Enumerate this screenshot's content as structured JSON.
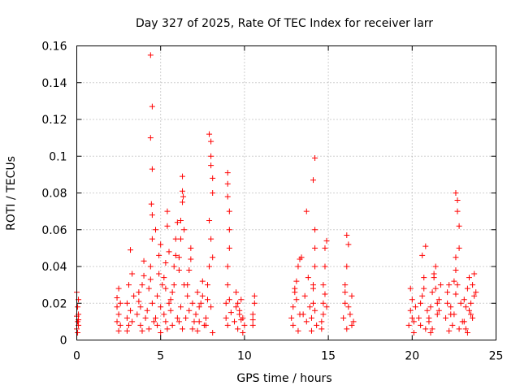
{
  "chart_data": {
    "type": "scatter",
    "title": "Day 327 of 2025, Rate Of TEC Index for receiver larr",
    "xlabel": "GPS time / hours",
    "ylabel": "ROTI / TECUs",
    "xlim": [
      0,
      25
    ],
    "ylim": [
      0,
      0.16
    ],
    "x_ticks": [
      0,
      5,
      10,
      15,
      20,
      25
    ],
    "x_tick_labels": [
      "0",
      "5",
      "10",
      "15",
      "20",
      "25"
    ],
    "y_ticks": [
      0,
      0.02,
      0.04,
      0.06,
      0.08,
      0.1,
      0.12,
      0.14,
      0.16
    ],
    "y_tick_labels": [
      "0",
      "0.02",
      "0.04",
      "0.06",
      "0.08",
      "0.1",
      "0.12",
      "0.14",
      "0.16"
    ],
    "grid": true,
    "legend": "none",
    "marker": "plus",
    "color": "#ff0000",
    "series": [
      {
        "x": [
          0.0,
          0.0,
          0.05,
          0.05,
          0.1,
          0.1,
          0.1,
          0.0,
          0.05,
          0.1,
          2.4,
          2.4,
          2.5,
          2.5,
          2.6,
          2.6,
          2.5,
          2.4,
          3.0,
          3.0,
          3.1,
          3.2,
          3.2,
          3.3,
          3.4,
          3.3,
          3.1,
          3.0,
          3.6,
          3.7,
          3.8,
          3.9,
          4.0,
          4.1,
          3.8,
          3.7,
          4.0,
          3.9,
          4.2,
          4.3,
          4.4,
          4.4,
          4.5,
          4.4,
          4.5,
          4.45,
          4.5,
          4.5,
          4.5,
          4.6,
          4.4,
          4.3,
          4.7,
          4.8,
          4.9,
          4.9,
          5.0,
          5.0,
          5.1,
          4.8,
          4.7,
          5.0,
          5.2,
          5.3,
          5.3,
          5.4,
          5.4,
          5.5,
          5.3,
          5.2,
          5.5,
          5.4,
          5.6,
          5.7,
          5.8,
          5.9,
          6.0,
          6.0,
          5.8,
          5.7,
          5.9,
          5.6,
          6.1,
          6.1,
          6.2,
          6.2,
          6.3,
          6.3,
          6.3,
          6.35,
          6.4,
          6.4,
          6.2,
          6.1,
          6.3,
          6.5,
          6.6,
          6.7,
          6.8,
          6.9,
          7.0,
          6.6,
          6.8,
          6.7,
          6.9,
          7.1,
          7.2,
          7.3,
          7.4,
          7.5,
          7.6,
          7.3,
          7.2,
          7.5,
          7.7,
          7.8,
          7.9,
          7.9,
          8.0,
          8.0,
          8.0,
          8.1,
          8.1,
          7.9,
          8.0,
          8.1,
          7.8,
          7.7,
          8.0,
          8.1,
          8.9,
          9.0,
          9.0,
          9.0,
          9.1,
          9.1,
          9.1,
          9.0,
          9.0,
          8.9,
          9.1,
          9.2,
          9.0,
          9.4,
          9.5,
          9.6,
          9.7,
          9.8,
          9.9,
          10.0,
          9.5,
          9.7,
          9.9,
          9.6,
          9.8,
          10.5,
          10.5,
          10.6,
          10.6,
          10.5,
          12.8,
          12.9,
          13.0,
          13.1,
          13.2,
          13.3,
          13.4,
          12.9,
          13.1,
          13.3,
          13.0,
          13.2,
          13.5,
          13.6,
          13.7,
          13.8,
          13.7,
          13.9,
          14.0,
          14.1,
          14.1,
          14.2,
          14.2,
          14.2,
          14.1,
          14.2,
          14.0,
          14.1,
          14.2,
          14.3,
          14.6,
          14.7,
          14.7,
          14.8,
          14.8,
          14.9,
          14.7,
          14.6,
          14.8,
          14.9,
          15.9,
          16.0,
          16.0,
          16.1,
          16.1,
          16.2,
          16.3,
          16.4,
          16.5,
          16.1,
          16.0,
          16.2,
          16.4,
          19.8,
          19.9,
          20.0,
          20.1,
          20.2,
          19.9,
          20.1,
          20.0,
          20.4,
          20.5,
          20.6,
          20.7,
          20.8,
          20.9,
          20.7,
          20.5,
          20.8,
          20.6,
          21.0,
          21.1,
          21.2,
          21.3,
          21.4,
          21.5,
          21.6,
          21.7,
          21.2,
          21.1,
          21.3,
          21.5,
          21.0,
          21.4,
          21.6,
          22.0,
          22.1,
          22.2,
          22.3,
          22.4,
          22.1,
          22.3,
          22.2,
          22.5,
          22.6,
          22.6,
          22.6,
          22.7,
          22.7,
          22.8,
          22.8,
          22.6,
          22.7,
          22.9,
          23.0,
          22.8,
          22.5,
          23.1,
          23.2,
          23.3,
          23.4,
          23.5,
          23.6,
          23.7,
          23.2,
          23.4,
          23.6,
          23.1,
          23.3,
          23.5,
          23.7,
          23.8
        ],
        "y": [
          0.006,
          0.013,
          0.01,
          0.018,
          0.008,
          0.014,
          0.022,
          0.026,
          0.004,
          0.011,
          0.01,
          0.018,
          0.028,
          0.014,
          0.008,
          0.02,
          0.005,
          0.023,
          0.012,
          0.02,
          0.03,
          0.049,
          0.016,
          0.01,
          0.024,
          0.036,
          0.008,
          0.005,
          0.014,
          0.026,
          0.018,
          0.03,
          0.035,
          0.012,
          0.008,
          0.021,
          0.043,
          0.005,
          0.016,
          0.028,
          0.04,
          0.155,
          0.127,
          0.11,
          0.093,
          0.074,
          0.068,
          0.055,
          0.02,
          0.01,
          0.033,
          0.006,
          0.012,
          0.024,
          0.036,
          0.046,
          0.052,
          0.018,
          0.03,
          0.008,
          0.06,
          0.004,
          0.014,
          0.028,
          0.042,
          0.062,
          0.07,
          0.02,
          0.01,
          0.034,
          0.048,
          0.006,
          0.016,
          0.026,
          0.04,
          0.055,
          0.064,
          0.012,
          0.03,
          0.008,
          0.046,
          0.022,
          0.01,
          0.045,
          0.055,
          0.065,
          0.075,
          0.089,
          0.081,
          0.078,
          0.06,
          0.03,
          0.018,
          0.038,
          0.006,
          0.012,
          0.024,
          0.038,
          0.05,
          0.02,
          0.01,
          0.03,
          0.044,
          0.016,
          0.006,
          0.014,
          0.026,
          0.01,
          0.02,
          0.032,
          0.008,
          0.018,
          0.005,
          0.024,
          0.012,
          0.022,
          0.04,
          0.112,
          0.108,
          0.1,
          0.095,
          0.088,
          0.08,
          0.065,
          0.055,
          0.045,
          0.03,
          0.008,
          0.018,
          0.004,
          0.012,
          0.091,
          0.085,
          0.078,
          0.07,
          0.06,
          0.05,
          0.04,
          0.03,
          0.02,
          0.022,
          0.015,
          0.008,
          0.01,
          0.018,
          0.006,
          0.014,
          0.022,
          0.012,
          0.008,
          0.026,
          0.016,
          0.004,
          0.02,
          0.011,
          0.008,
          0.014,
          0.02,
          0.024,
          0.011,
          0.012,
          0.018,
          0.026,
          0.032,
          0.04,
          0.044,
          0.045,
          0.008,
          0.022,
          0.014,
          0.028,
          0.005,
          0.014,
          0.024,
          0.07,
          0.034,
          0.01,
          0.018,
          0.012,
          0.02,
          0.03,
          0.04,
          0.05,
          0.099,
          0.087,
          0.06,
          0.005,
          0.028,
          0.016,
          0.008,
          0.01,
          0.02,
          0.03,
          0.04,
          0.05,
          0.054,
          0.014,
          0.006,
          0.025,
          0.018,
          0.012,
          0.02,
          0.03,
          0.04,
          0.057,
          0.052,
          0.014,
          0.024,
          0.01,
          0.006,
          0.026,
          0.018,
          0.008,
          0.008,
          0.016,
          0.022,
          0.01,
          0.018,
          0.028,
          0.004,
          0.012,
          0.012,
          0.02,
          0.046,
          0.028,
          0.051,
          0.016,
          0.034,
          0.008,
          0.006,
          0.024,
          0.01,
          0.018,
          0.026,
          0.034,
          0.04,
          0.014,
          0.022,
          0.03,
          0.006,
          0.004,
          0.036,
          0.02,
          0.012,
          0.028,
          0.016,
          0.012,
          0.02,
          0.03,
          0.018,
          0.008,
          0.026,
          0.014,
          0.005,
          0.014,
          0.025,
          0.045,
          0.08,
          0.076,
          0.07,
          0.062,
          0.05,
          0.038,
          0.03,
          0.02,
          0.01,
          0.006,
          0.032,
          0.01,
          0.018,
          0.028,
          0.034,
          0.02,
          0.012,
          0.024,
          0.006,
          0.016,
          0.03,
          0.022,
          0.004,
          0.014,
          0.036,
          0.026
        ]
      }
    ]
  }
}
